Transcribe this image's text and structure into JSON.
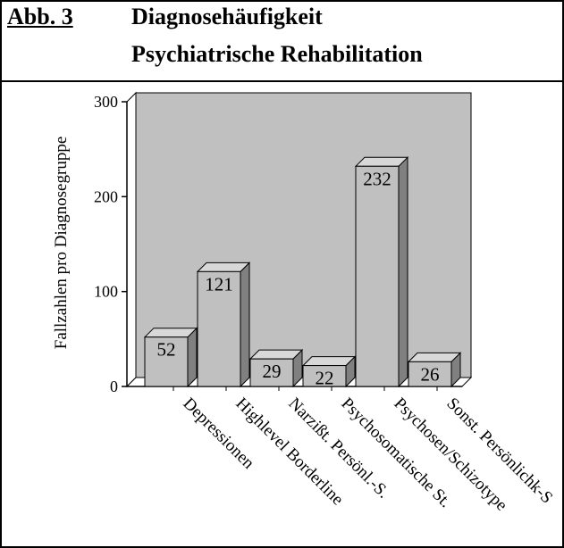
{
  "header": {
    "figure_label": "Abb. 3",
    "title_line1": "Diagnosehäufigkeit",
    "title_line2": "Psychiatrische Rehabilitation"
  },
  "colors": {
    "bar_front": "#c0c0c0",
    "bar_top": "#d8d8d8",
    "bar_side": "#808080",
    "wall": "#c0c0c0",
    "border": "#000000"
  },
  "chart_data": {
    "type": "bar",
    "style": "3d",
    "categories": [
      "Depressionen",
      "Highlevel Borderline",
      "Narzißt. Persönl.-S.",
      "Psychosomatische St.",
      "Psychosen/Schizotype",
      "Sonst. Persönlichk-S"
    ],
    "values": [
      52,
      121,
      29,
      22,
      232,
      26
    ],
    "ylabel": "Fallzahlen pro Diagnosegruppe",
    "xlabel": "",
    "ylim": [
      0,
      300
    ],
    "yticks": [
      0,
      100,
      200,
      300
    ],
    "data_labels": [
      "52",
      "121",
      "29",
      "22",
      "232",
      "26"
    ],
    "grid": false,
    "legend": "none"
  }
}
